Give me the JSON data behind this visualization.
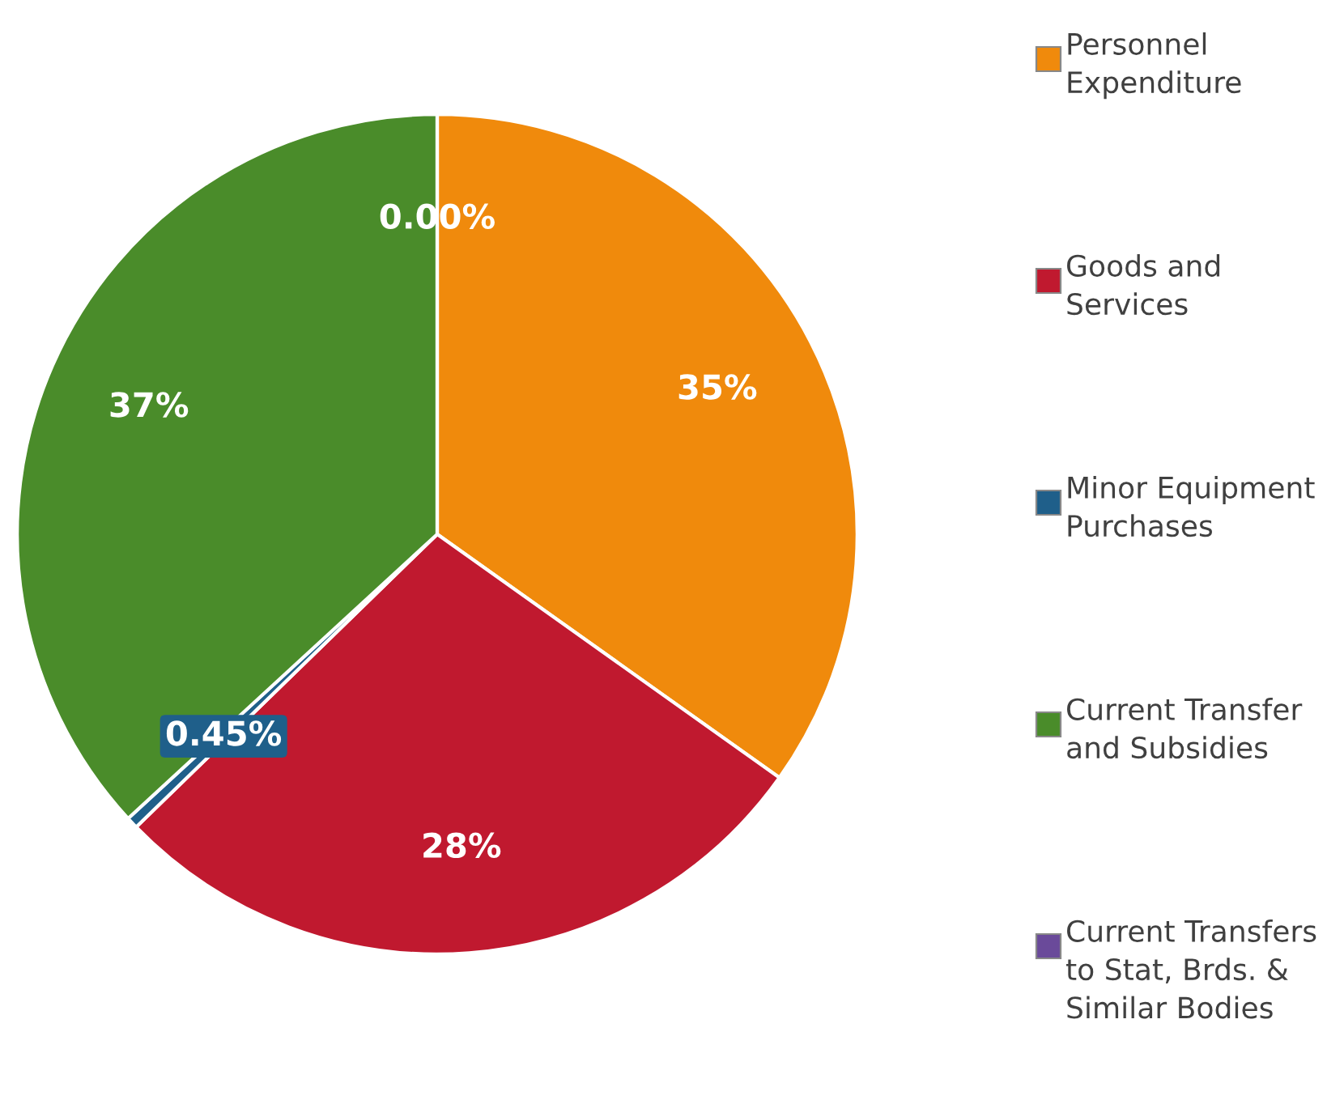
{
  "chart_data": {
    "type": "pie",
    "categories": [
      "Personnel Expenditure",
      "Goods and Services",
      "Minor Equipment Purchases",
      "Current Transfer and Subsidies",
      "Current Transfers to Stat, Brds. & Similar Bodies"
    ],
    "values": [
      35,
      28,
      0.45,
      37,
      0.0
    ],
    "value_labels": [
      "35%",
      "28%",
      "0.45%",
      "37%",
      "0.00%"
    ],
    "colors": [
      "#f08a0c",
      "#c0192f",
      "#1f5f8a",
      "#4a8c2a",
      "#6a4a9a"
    ],
    "legend": "right"
  }
}
